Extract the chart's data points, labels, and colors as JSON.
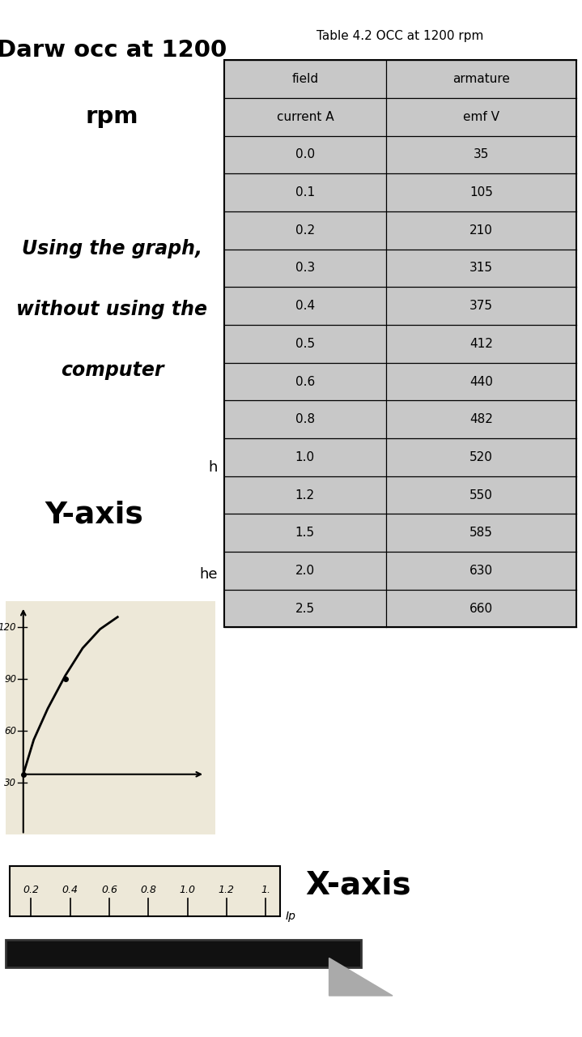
{
  "title": "Table 4.2 OCC at 1200 rpm",
  "col1_header1": "field",
  "col1_header2": "current A",
  "col2_header1": "armature",
  "col2_header2": "emf V",
  "table_data": [
    [
      "0.0",
      "35"
    ],
    [
      "0.1",
      "105"
    ],
    [
      "0.2",
      "210"
    ],
    [
      "0.3",
      "315"
    ],
    [
      "0.4",
      "375"
    ],
    [
      "0.5",
      "412"
    ],
    [
      "0.6",
      "440"
    ],
    [
      "0.8",
      "482"
    ],
    [
      "1.0",
      "520"
    ],
    [
      "1.2",
      "550"
    ],
    [
      "1.5",
      "585"
    ],
    [
      "2.0",
      "630"
    ],
    [
      "2.5",
      "660"
    ]
  ],
  "left_bold_line1": "Darw occ at 1200",
  "left_bold_line2": "rpm",
  "italic_line1": "Using the graph,",
  "italic_line2": "without using the",
  "italic_line3": "computer",
  "yaxis_label": "Y-axis",
  "xaxis_label": "X-axis",
  "partial_h": "h",
  "partial_he": "he",
  "graph_ip_label": "Ip",
  "xaxis_ticks": [
    "0.2",
    "0.4",
    "0.6",
    "0.8",
    "1.0",
    "1.2",
    "1."
  ],
  "yaxis_ticks_labels": [
    "120",
    "90",
    "60",
    "30"
  ],
  "bg_color": "#ffffff",
  "table_cell_color": "#c8c8c8",
  "table_border_color": "#000000",
  "black_bar_color": "#111111"
}
